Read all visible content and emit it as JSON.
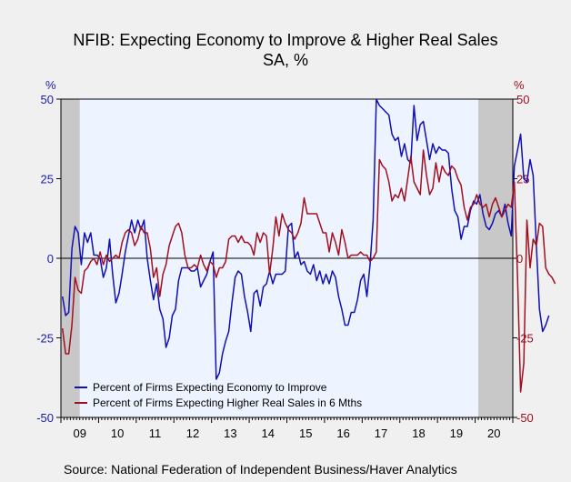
{
  "title": "NFIB: Expecting Economy to Improve & Higher Real Sales",
  "subtitle": "SA, %",
  "source": "Source:  National Federation of Independent Business/Haver Analytics",
  "chart_data": {
    "type": "line",
    "left_axis_unit": "%",
    "right_axis_unit": "%",
    "ylim": [
      -50,
      50
    ],
    "yticks": [
      50,
      25,
      0,
      -25,
      -50
    ],
    "xlim": [
      "2009-01",
      "2020-12"
    ],
    "x_tick_labels": [
      "09",
      "10",
      "11",
      "12",
      "13",
      "14",
      "15",
      "16",
      "17",
      "18",
      "19",
      "20"
    ],
    "recessions": [
      [
        "2009-01",
        "2009-06"
      ],
      [
        "2020-02",
        "2020-12"
      ]
    ],
    "background_color": "#eef4ff",
    "recession_color": "#c8c8c8",
    "grid": false,
    "legend_position": "bottom-left",
    "series": [
      {
        "name": "Percent of Firms Expecting Economy to Improve",
        "color": "#1010b4",
        "axis": "left",
        "start": "2009-01",
        "values": [
          -12,
          -18,
          -17,
          3,
          10,
          8,
          -2,
          8,
          5,
          8,
          1,
          1,
          0,
          -6,
          -3,
          6,
          -5,
          -14,
          -11,
          -5,
          2,
          7,
          12,
          8,
          12,
          9,
          12,
          0,
          -7,
          -13,
          -8,
          -16,
          -19,
          -28,
          -25,
          -18,
          -16,
          -7,
          -3,
          -3,
          -3,
          -4,
          -4,
          -3,
          -9,
          -7,
          -5,
          -1,
          2,
          -38,
          -36,
          -30,
          -26,
          -23,
          -14,
          -6,
          -4,
          -5,
          -12,
          -17,
          -23,
          -11,
          -10,
          -15,
          -9,
          -8,
          -4,
          -8,
          -5,
          -5,
          -5,
          -4,
          10,
          11,
          0,
          2,
          -2,
          -1,
          -4,
          -5,
          -2,
          -7,
          -4,
          -8,
          -5,
          -8,
          -4,
          -6,
          -12,
          -16,
          -21,
          -21,
          -17,
          -17,
          -13,
          -7,
          -5,
          -12,
          -2,
          12,
          50,
          48,
          47,
          46,
          45,
          39,
          37,
          38,
          32,
          36,
          31,
          30,
          48,
          37,
          42,
          43,
          37,
          31,
          36,
          33,
          35,
          34,
          34,
          33,
          22,
          15,
          13,
          6,
          10,
          10,
          15,
          18,
          17,
          20,
          14,
          10,
          9,
          11,
          14,
          15,
          13,
          17,
          11,
          7,
          29,
          34,
          39,
          25,
          24,
          31,
          26,
          4,
          -16,
          -23,
          -21,
          -18
        ]
      },
      {
        "name": "Percent of Firms Expecting Higher Real Sales in 6 Mths",
        "color": "#a01020",
        "axis": "right",
        "start": "2009-01",
        "values": [
          -22,
          -30,
          -30,
          -21,
          -6,
          -10,
          -11,
          -4,
          -3,
          -1,
          0,
          -2,
          2,
          -2,
          1,
          -1,
          0,
          1,
          0,
          5,
          8,
          9,
          8,
          4,
          6,
          10,
          8,
          8,
          3,
          -6,
          -3,
          -12,
          -5,
          -2,
          4,
          7,
          10,
          11,
          8,
          1,
          -3,
          -3,
          -2,
          -3,
          1,
          -2,
          -4,
          -1,
          -2,
          -6,
          -3,
          -3,
          -1,
          6,
          7,
          7,
          5,
          7,
          5,
          5,
          4,
          1,
          8,
          5,
          8,
          7,
          -5,
          3,
          13,
          7,
          14,
          11,
          9,
          8,
          6,
          8,
          11,
          19,
          14,
          14,
          14,
          14,
          11,
          8,
          8,
          2,
          8,
          5,
          1,
          9,
          5,
          0,
          1,
          1,
          1,
          2,
          1,
          1,
          -1,
          0,
          2,
          31,
          29,
          28,
          24,
          18,
          20,
          19,
          22,
          18,
          25,
          32,
          24,
          22,
          20,
          34,
          26,
          20,
          22,
          30,
          24,
          29,
          27,
          26,
          29,
          28,
          25,
          23,
          16,
          12,
          16,
          17,
          20,
          17,
          16,
          17,
          13,
          17,
          19,
          16,
          13,
          15,
          17,
          16,
          24,
          -6,
          -42,
          -33,
          12,
          -3,
          6,
          4,
          11,
          10,
          -3,
          -5,
          -6,
          -8
        ]
      }
    ]
  }
}
